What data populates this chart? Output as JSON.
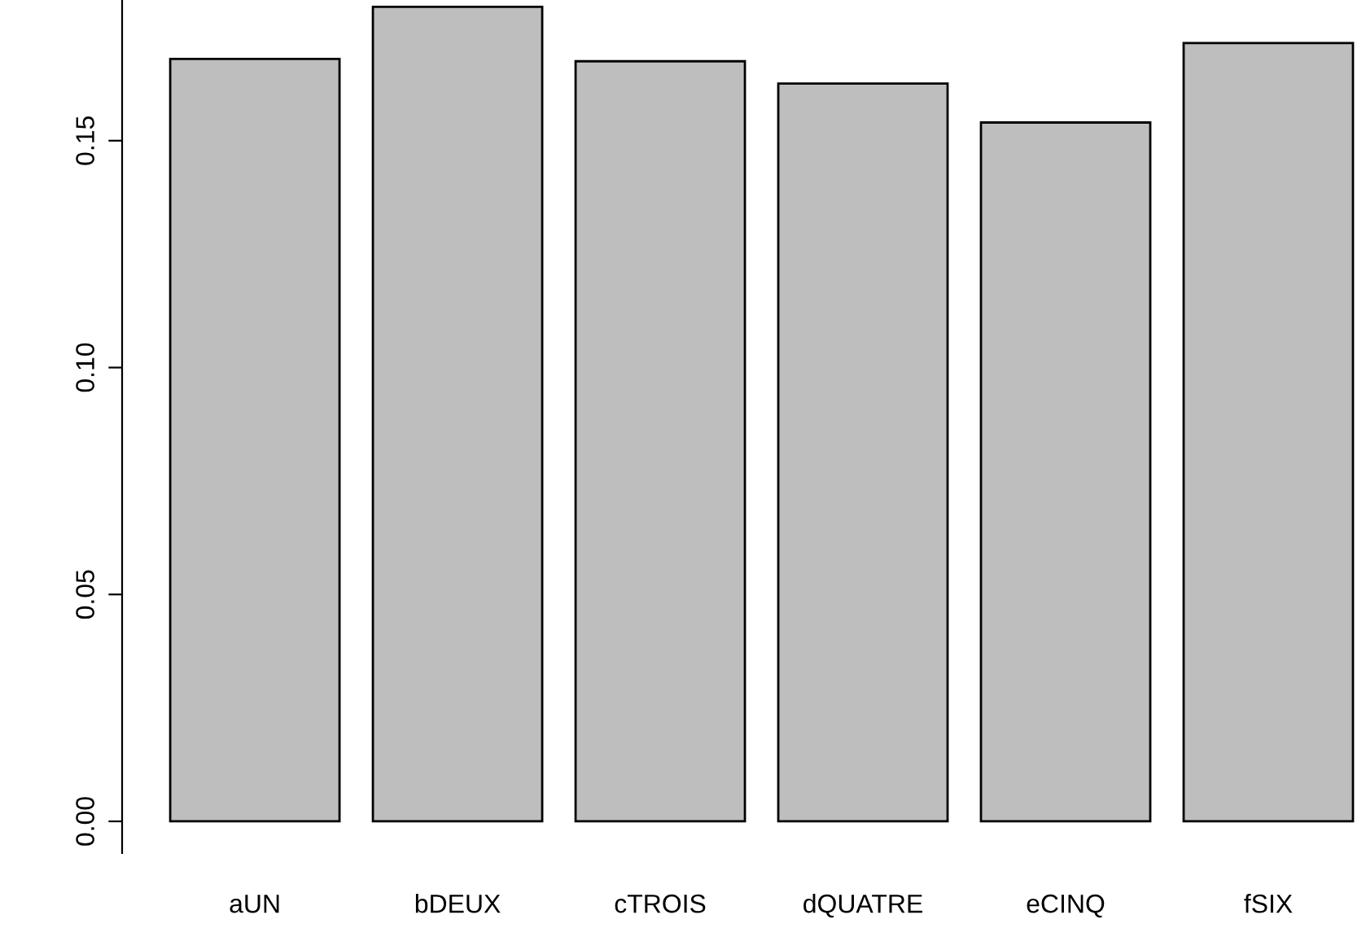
{
  "chart_data": {
    "type": "bar",
    "categories": [
      "aUN",
      "bDEUX",
      "cTROIS",
      "dQUATRE",
      "eCINQ",
      "fSIX"
    ],
    "values": [
      0.168,
      0.1795,
      0.1675,
      0.1626,
      0.154,
      0.1715
    ],
    "color": "#bebebe",
    "ylim": [
      -0.007,
      0.181
    ],
    "yticks": [
      {
        "value": 0,
        "label": "0.00"
      },
      {
        "value": 0.05,
        "label": "0.05"
      },
      {
        "value": 0.1,
        "label": "0.10"
      },
      {
        "value": 0.15,
        "label": "0.15"
      }
    ],
    "grid": false
  }
}
